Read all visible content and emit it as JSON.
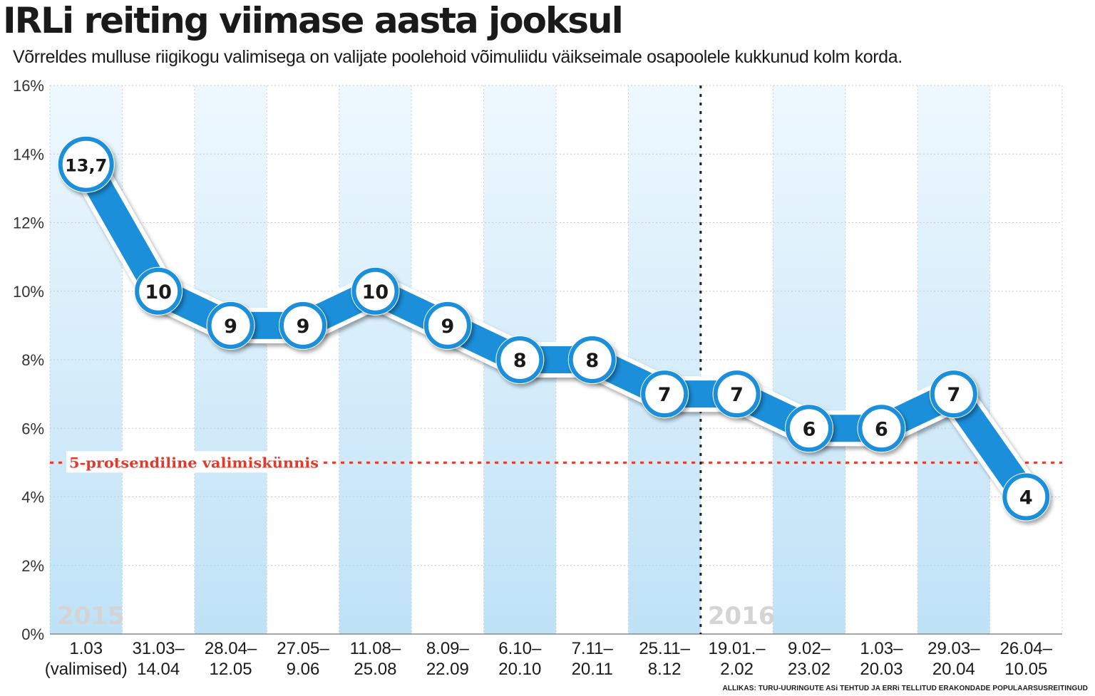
{
  "title": "IRLi reiting viimase aasta jooksul",
  "subtitle": "Võrreldes mulluse riigikogu valimisega on valijate poolehoid võimuliidu väikseimale osapoolele kukkunud kolm korda.",
  "source": "ALLIKAS: TURU-UURINGUTE ASi TEHTUD JA ERRi TELLITUD ERAKONDADE POPULAARSUSREITINGUD",
  "colors": {
    "line": "#1b8fd9",
    "shade": "#c4e5f8",
    "threshold": "#e23a2a",
    "divider": "#222222"
  },
  "chart_data": {
    "type": "line",
    "title": "IRLi reiting viimase aasta jooksul",
    "categories": [
      [
        "1.03",
        "(valimised)"
      ],
      [
        "31.03–",
        "14.04"
      ],
      [
        "28.04–",
        "12.05"
      ],
      [
        "27.05–",
        "9.06"
      ],
      [
        "11.08–",
        "25.08"
      ],
      [
        "8.09–",
        "22.09"
      ],
      [
        "6.10–",
        "20.10"
      ],
      [
        "7.11–",
        "20.11"
      ],
      [
        "25.11–",
        "8.12"
      ],
      [
        "19.01.–",
        "2.02"
      ],
      [
        "9.02–",
        "23.02"
      ],
      [
        "1.03–",
        "20.03"
      ],
      [
        "29.03–",
        "20.04"
      ],
      [
        "26.04–",
        "10.05"
      ]
    ],
    "values": [
      13.7,
      10,
      9,
      9,
      10,
      9,
      8,
      8,
      7,
      7,
      6,
      6,
      7,
      4
    ],
    "value_labels": [
      "13,7",
      "10",
      "9",
      "9",
      "10",
      "9",
      "8",
      "8",
      "7",
      "7",
      "6",
      "6",
      "7",
      "4"
    ],
    "ylim": [
      0,
      16
    ],
    "yticks": [
      0,
      2,
      4,
      6,
      8,
      10,
      12,
      14,
      16
    ],
    "ytick_labels": [
      "0%",
      "2%",
      "4%",
      "6%",
      "8%",
      "10%",
      "12%",
      "14%",
      "16%"
    ],
    "grid": true,
    "shaded_columns": [
      0,
      2,
      4,
      6,
      8,
      10,
      12
    ],
    "threshold": {
      "value": 5,
      "label": "5-protsendiline valimiskünnis"
    },
    "year_divider_after_index": 8,
    "year_labels": [
      {
        "text": "2015",
        "index": 0
      },
      {
        "text": "2016",
        "index": 9
      }
    ]
  }
}
